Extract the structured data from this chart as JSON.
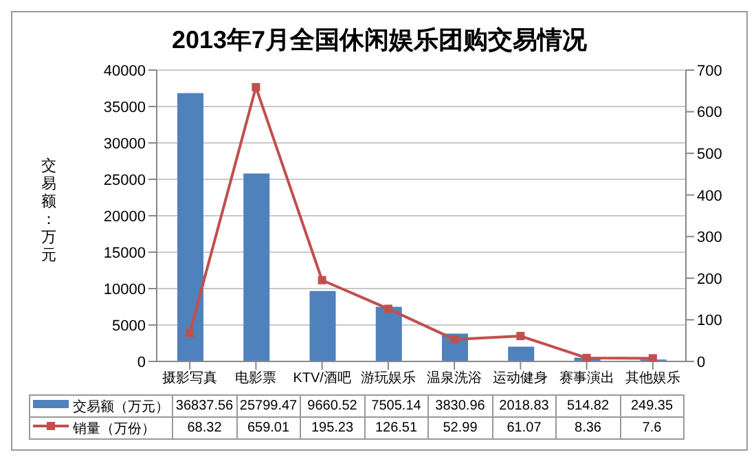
{
  "chart_data": {
    "type": "bar",
    "title": "2013年7月全国休闲娱乐团购交易情况",
    "ylabel": "交易额：万元",
    "categories": [
      "摄影写真",
      "电影票",
      "KTV/酒吧",
      "游玩娱乐",
      "温泉洗浴",
      "运动健身",
      "赛事演出",
      "其他娱乐"
    ],
    "series": [
      {
        "name": "交易额（万元）",
        "color": "#4f81bd",
        "values": [
          36837.56,
          25799.47,
          9660.52,
          7505.14,
          3830.96,
          2018.83,
          514.82,
          249.35
        ]
      },
      {
        "name": "销量（万份）",
        "type": "line",
        "axis": "y2",
        "color": "#c0504d",
        "marker": "square",
        "values": [
          68.32,
          659.01,
          195.23,
          126.51,
          52.99,
          61.07,
          8.36,
          7.6
        ]
      }
    ],
    "ylim": [
      0,
      40000
    ],
    "yticks": [
      0,
      5000,
      10000,
      15000,
      20000,
      25000,
      30000,
      35000,
      40000
    ],
    "y2lim": [
      0,
      700
    ],
    "y2ticks": [
      0,
      100,
      200,
      300,
      400,
      500,
      600,
      700
    ],
    "grid": "y",
    "legend": "bottom",
    "data_labels": true
  }
}
